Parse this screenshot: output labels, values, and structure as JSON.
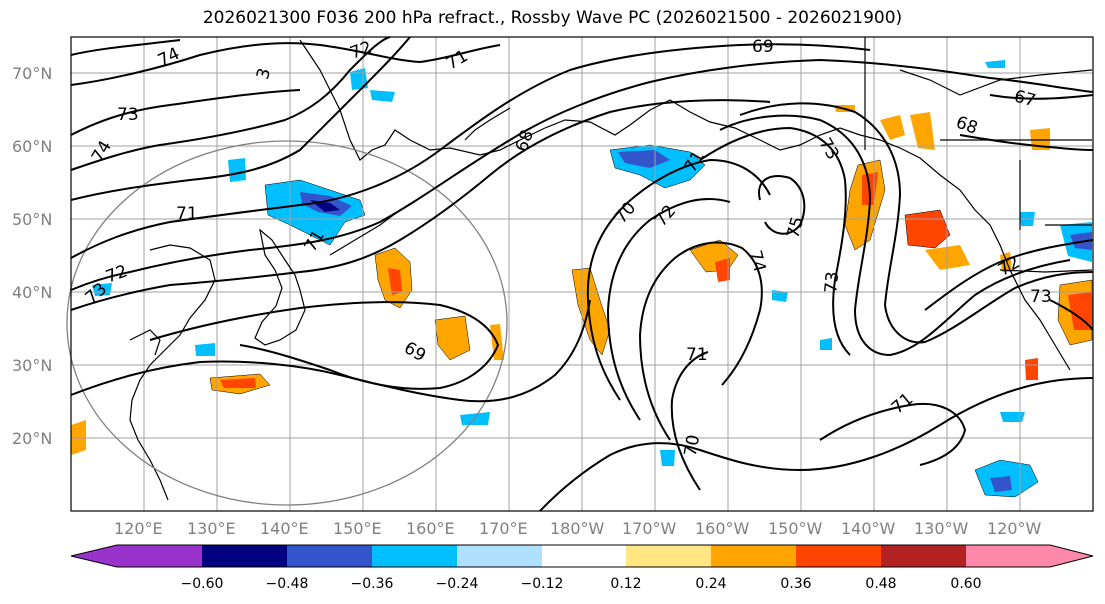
{
  "title": "2026021300 F036 200 hPa refract., Rossby Wave PC (2026021500 - 2026021900)",
  "lat_labels": [
    "70°N",
    "60°N",
    "50°N",
    "40°N",
    "30°N",
    "20°N"
  ],
  "lon_labels": [
    "120°E",
    "130°E",
    "140°E",
    "150°E",
    "160°E",
    "170°E",
    "180°W",
    "170°W",
    "160°W",
    "150°W",
    "140°W",
    "130°W",
    "120°W"
  ],
  "colorbar": {
    "tick_labels": [
      "−0.60",
      "−0.48",
      "−0.36",
      "−0.24",
      "−0.12",
      "0.12",
      "0.24",
      "0.36",
      "0.48",
      "0.60"
    ],
    "colors": [
      "#9933cc",
      "#000080",
      "#3355cc",
      "#00bfff",
      "#b0e0ff",
      "#ffffff",
      "#ffe680",
      "#ffa500",
      "#ff4500",
      "#b22222",
      "#ff88aa"
    ]
  },
  "contour_labels": [
    "74",
    "72",
    "71",
    "69",
    "73",
    "74",
    "71",
    "72",
    "68",
    "71",
    "70",
    "72",
    "75",
    "74",
    "73",
    "71",
    "69",
    "70",
    "71",
    "68",
    "67",
    "72",
    "73",
    "71",
    "3",
    "73",
    "73"
  ],
  "colors": {
    "frame": "#000000",
    "grid": "#a0a0a0",
    "coast": "#000000",
    "circle": "#808080"
  }
}
